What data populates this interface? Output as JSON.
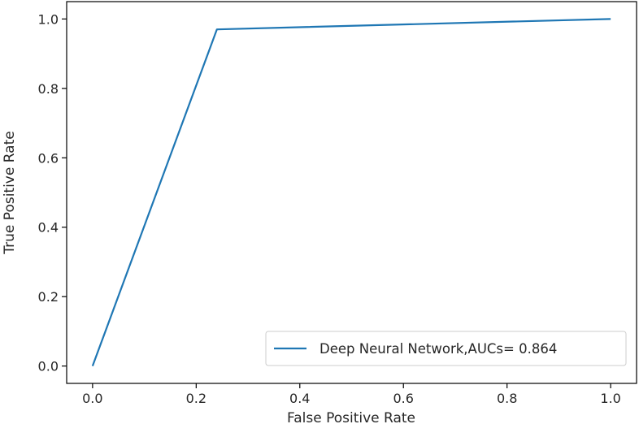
{
  "chart_data": {
    "type": "line",
    "xlabel": "False Positive Rate",
    "ylabel": "True Positive Rate",
    "xlim": [
      -0.05,
      1.05
    ],
    "ylim": [
      -0.05,
      1.05
    ],
    "x_ticks": [
      "0.0",
      "0.2",
      "0.4",
      "0.6",
      "0.8",
      "1.0"
    ],
    "y_ticks": [
      "0.0",
      "0.2",
      "0.4",
      "0.6",
      "0.8",
      "1.0"
    ],
    "grid": false,
    "legend_position": "lower-right",
    "series": [
      {
        "name": "Deep Neural Network,AUCs= 0.864",
        "color": "#1f77b4",
        "x": [
          0.0,
          0.24,
          1.0
        ],
        "y": [
          0.0,
          0.97,
          1.0
        ]
      }
    ]
  }
}
